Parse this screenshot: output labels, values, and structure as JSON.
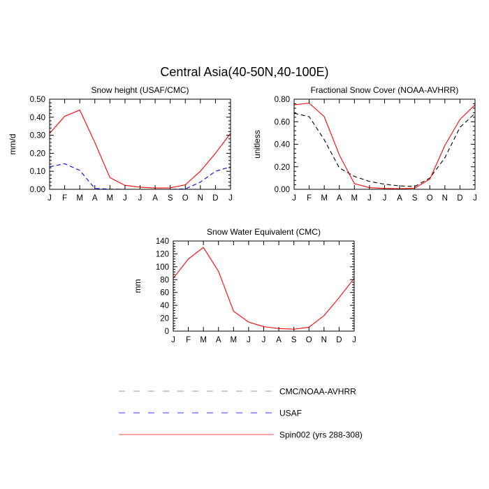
{
  "figure": {
    "title": "Central Asia(40-50N,40-100E)"
  },
  "colors": {
    "cmc_noaa": "#000000",
    "usaf": "#0000ff",
    "spin": "#ff0000",
    "legend_gray": "#9a9a9a",
    "legend_blue": "#3333ff",
    "legend_red": "#ff4d4d"
  },
  "legend": {
    "entries": [
      {
        "label": "CMC/NOAA-AVHRR",
        "style": "dashed",
        "color": "#9a9a9a"
      },
      {
        "label": "USAF",
        "style": "dashed",
        "color": "#3333ff"
      },
      {
        "label": "Spin002 (yrs 288-308)",
        "style": "solid",
        "color": "#ff4d4d"
      }
    ]
  },
  "chart_data": [
    {
      "type": "line",
      "title": "Snow height (USAF/CMC)",
      "xlabel": "",
      "ylabel": "mm/d",
      "categories": [
        "J",
        "F",
        "M",
        "A",
        "M",
        "J",
        "J",
        "A",
        "S",
        "O",
        "N",
        "D",
        "J"
      ],
      "ylim": [
        0,
        0.5
      ],
      "yticks": [
        0,
        0.1,
        0.2,
        0.3,
        0.4,
        0.5
      ],
      "ytick_labels": [
        "0.00",
        "0.10",
        "0.20",
        "0.30",
        "0.40",
        "0.50"
      ],
      "grid": false,
      "series": [
        {
          "name": "CMC/NOAA-AVHRR",
          "color": "#000000",
          "style": "dashed",
          "values": [
            0,
            0,
            0,
            0,
            0,
            0,
            0,
            0,
            0,
            0,
            0,
            0,
            0
          ]
        },
        {
          "name": "USAF",
          "color": "#0000ff",
          "style": "dashed",
          "values": [
            0.125,
            0.142,
            0.105,
            0.005,
            0.001,
            0,
            0,
            0,
            0,
            0.002,
            0.04,
            0.1,
            0.125
          ]
        },
        {
          "name": "Spin002 (yrs 288-308)",
          "color": "#ff0000",
          "style": "solid",
          "values": [
            0.31,
            0.405,
            0.44,
            0.26,
            0.065,
            0.022,
            0.012,
            0.007,
            0.008,
            0.025,
            0.1,
            0.2,
            0.31
          ]
        }
      ]
    },
    {
      "type": "line",
      "title": "Fractional Snow Cover (NOAA-AVHRR)",
      "xlabel": "",
      "ylabel": "unitless",
      "categories": [
        "J",
        "F",
        "M",
        "A",
        "M",
        "J",
        "J",
        "A",
        "S",
        "O",
        "N",
        "D",
        "J"
      ],
      "ylim": [
        0,
        0.8
      ],
      "yticks": [
        0,
        0.2,
        0.4,
        0.6,
        0.8
      ],
      "ytick_labels": [
        "0.00",
        "0.20",
        "0.40",
        "0.60",
        "0.80"
      ],
      "grid": false,
      "series": [
        {
          "name": "CMC/NOAA-AVHRR",
          "color": "#000000",
          "style": "dashed",
          "values": [
            0.675,
            0.645,
            0.44,
            0.19,
            0.115,
            0.07,
            0.045,
            0.03,
            0.025,
            0.1,
            0.28,
            0.55,
            0.675
          ]
        },
        {
          "name": "Spin002 (yrs 288-308)",
          "color": "#ff0000",
          "style": "solid",
          "values": [
            0.75,
            0.765,
            0.645,
            0.305,
            0.05,
            0.015,
            0.008,
            0.005,
            0.01,
            0.09,
            0.39,
            0.62,
            0.75
          ]
        }
      ]
    },
    {
      "type": "line",
      "title": "Snow Water Equivalent (CMC)",
      "xlabel": "",
      "ylabel": "mm",
      "categories": [
        "J",
        "F",
        "M",
        "A",
        "M",
        "J",
        "J",
        "A",
        "S",
        "O",
        "N",
        "D",
        "J"
      ],
      "ylim": [
        0,
        140
      ],
      "yticks": [
        0,
        20,
        40,
        60,
        80,
        100,
        120,
        140
      ],
      "ytick_labels": [
        "0",
        "20",
        "40",
        "60",
        "80",
        "100",
        "120",
        "140"
      ],
      "grid": false,
      "series": [
        {
          "name": "CMC/NOAA-AVHRR",
          "color": "#000000",
          "style": "dashed",
          "values": [
            0,
            0,
            0,
            0,
            0,
            0,
            0,
            0,
            0,
            0,
            0,
            0,
            0
          ]
        },
        {
          "name": "Spin002 (yrs 288-308)",
          "color": "#ff0000",
          "style": "solid",
          "values": [
            82,
            112,
            130,
            93,
            31,
            14,
            7,
            4,
            3,
            6,
            24,
            52,
            82
          ]
        }
      ]
    }
  ]
}
